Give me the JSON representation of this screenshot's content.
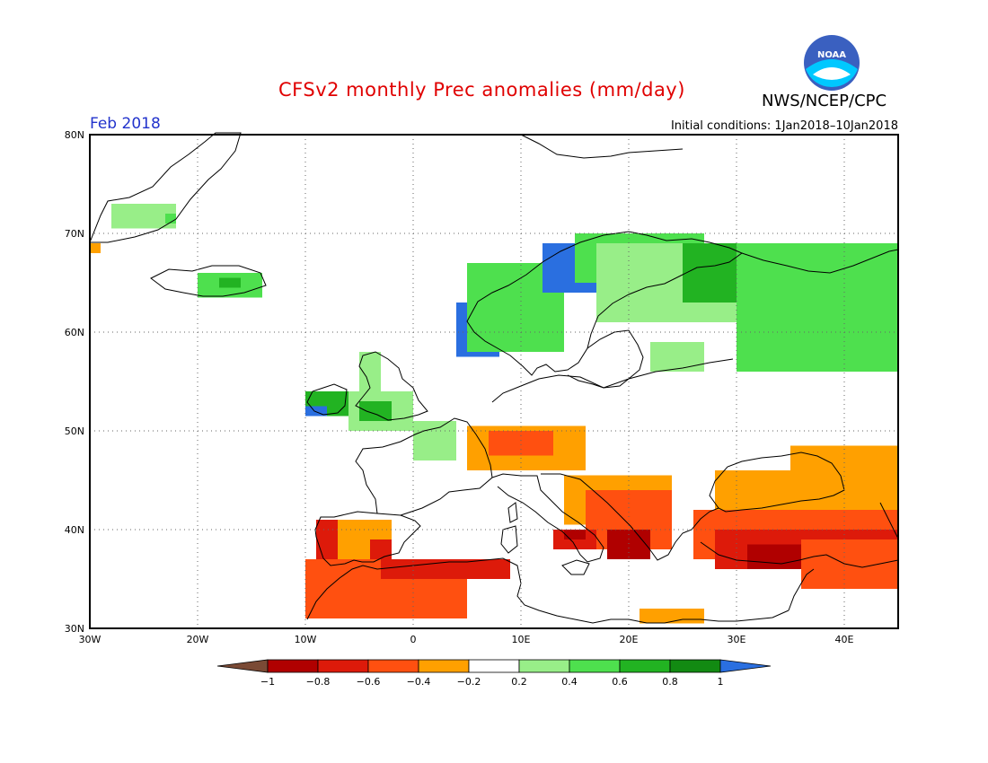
{
  "title": "CFSv2 monthly Prec anomalies (mm/day)",
  "agency": "NWS/NCEP/CPC",
  "month": "Feb 2018",
  "init_conditions": "Initial conditions: 1Jan2018–10Jan2018",
  "logo_text": "NOAA",
  "lat_labels": [
    "80N",
    "70N",
    "60N",
    "50N",
    "40N",
    "30N"
  ],
  "lon_labels": [
    "30W",
    "20W",
    "10W",
    "0",
    "10E",
    "20E",
    "30E",
    "40E"
  ],
  "colorbar": {
    "labels": [
      "−1",
      "−0.8",
      "−0.6",
      "−0.4",
      "−0.2",
      "0.2",
      "0.4",
      "0.6",
      "0.8",
      "1"
    ],
    "colors": [
      "#7a4a35",
      "#b00000",
      "#dd1a0a",
      "#ff5010",
      "#ffa000",
      "#ffffff",
      "#98ee88",
      "#4ee04e",
      "#22b322",
      "#128a12",
      "#2a6fe0"
    ]
  },
  "chart_data": {
    "type": "heatmap",
    "variable": "Prec anomalies (mm/day)",
    "xlim": [
      -30,
      45
    ],
    "ylim": [
      30,
      80
    ],
    "levels": [
      -1,
      -0.8,
      -0.6,
      -0.4,
      -0.2,
      0.2,
      0.4,
      0.6,
      0.8,
      1
    ],
    "regions": [
      {
        "lon": [
          -28,
          -22
        ],
        "lat": [
          70.5,
          73
        ],
        "value": 0.3
      },
      {
        "lon": [
          -23,
          -22
        ],
        "lat": [
          71,
          72
        ],
        "value": 0.5
      },
      {
        "lon": [
          -30,
          -29
        ],
        "lat": [
          68,
          69
        ],
        "value": -0.3
      },
      {
        "lon": [
          -20,
          -14
        ],
        "lat": [
          63.5,
          66
        ],
        "value": 0.4
      },
      {
        "lon": [
          -18,
          -16
        ],
        "lat": [
          64.5,
          65.5
        ],
        "value": 0.7
      },
      {
        "lon": [
          -5,
          -3
        ],
        "lat": [
          53,
          58
        ],
        "value": 0.3
      },
      {
        "lon": [
          -10,
          -6
        ],
        "lat": [
          51.5,
          54
        ],
        "value": 0.6
      },
      {
        "lon": [
          -10,
          -8
        ],
        "lat": [
          51.5,
          52.5
        ],
        "value": 1.1
      },
      {
        "lon": [
          -6,
          0
        ],
        "lat": [
          50,
          54
        ],
        "value": 0.3
      },
      {
        "lon": [
          -5,
          -2
        ],
        "lat": [
          51,
          53
        ],
        "value": 0.6
      },
      {
        "lon": [
          0,
          4
        ],
        "lat": [
          47,
          51
        ],
        "value": 0.3
      },
      {
        "lon": [
          4,
          8
        ],
        "lat": [
          57.5,
          63
        ],
        "value": 1.1
      },
      {
        "lon": [
          5,
          14
        ],
        "lat": [
          58,
          67
        ],
        "value": 0.5
      },
      {
        "lon": [
          12,
          18
        ],
        "lat": [
          64,
          69
        ],
        "value": 1.1
      },
      {
        "lon": [
          15,
          27
        ],
        "lat": [
          65,
          70
        ],
        "value": 0.4
      },
      {
        "lon": [
          17,
          30
        ],
        "lat": [
          61,
          69
        ],
        "value": 0.3
      },
      {
        "lon": [
          25,
          35
        ],
        "lat": [
          63,
          69
        ],
        "value": 0.7
      },
      {
        "lon": [
          30,
          45
        ],
        "lat": [
          56,
          69
        ],
        "value": 0.4
      },
      {
        "lon": [
          35,
          45
        ],
        "lat": [
          60,
          67
        ],
        "value": 0.5
      },
      {
        "lon": [
          22,
          27
        ],
        "lat": [
          56,
          59
        ],
        "value": 0.3
      },
      {
        "lon": [
          5,
          16
        ],
        "lat": [
          46,
          50.5
        ],
        "value": -0.3
      },
      {
        "lon": [
          7,
          13
        ],
        "lat": [
          47.5,
          50
        ],
        "value": -0.5
      },
      {
        "lon": [
          14,
          24
        ],
        "lat": [
          40.5,
          45.5
        ],
        "value": -0.3
      },
      {
        "lon": [
          16,
          24
        ],
        "lat": [
          38,
          44
        ],
        "value": -0.6
      },
      {
        "lon": [
          18,
          22
        ],
        "lat": [
          37,
          40
        ],
        "value": -0.9
      },
      {
        "lon": [
          28,
          45
        ],
        "lat": [
          42,
          46
        ],
        "value": -0.3
      },
      {
        "lon": [
          35,
          45
        ],
        "lat": [
          44,
          48.5
        ],
        "value": -0.3
      },
      {
        "lon": [
          26,
          45
        ],
        "lat": [
          37,
          42
        ],
        "value": -0.6
      },
      {
        "lon": [
          28,
          45
        ],
        "lat": [
          36,
          40
        ],
        "value": -0.8
      },
      {
        "lon": [
          31,
          39
        ],
        "lat": [
          36,
          38.5
        ],
        "value": -1.0
      },
      {
        "lon": [
          36,
          45
        ],
        "lat": [
          34,
          39
        ],
        "value": -0.6
      },
      {
        "lon": [
          -9,
          -2
        ],
        "lat": [
          36,
          41
        ],
        "value": -0.4
      },
      {
        "lon": [
          -9,
          -7
        ],
        "lat": [
          37,
          41
        ],
        "value": -0.7
      },
      {
        "lon": [
          -4,
          -2
        ],
        "lat": [
          37,
          39
        ],
        "value": -0.7
      },
      {
        "lon": [
          -10,
          5
        ],
        "lat": [
          31,
          37
        ],
        "value": -0.6
      },
      {
        "lon": [
          -3,
          9
        ],
        "lat": [
          35,
          37
        ],
        "value": -0.8
      },
      {
        "lon": [
          13,
          17
        ],
        "lat": [
          38,
          40
        ],
        "value": -0.8
      },
      {
        "lon": [
          14,
          16
        ],
        "lat": [
          39,
          40
        ],
        "value": -1.0
      },
      {
        "lon": [
          21,
          27
        ],
        "lat": [
          30.5,
          32
        ],
        "value": -0.4
      }
    ]
  }
}
